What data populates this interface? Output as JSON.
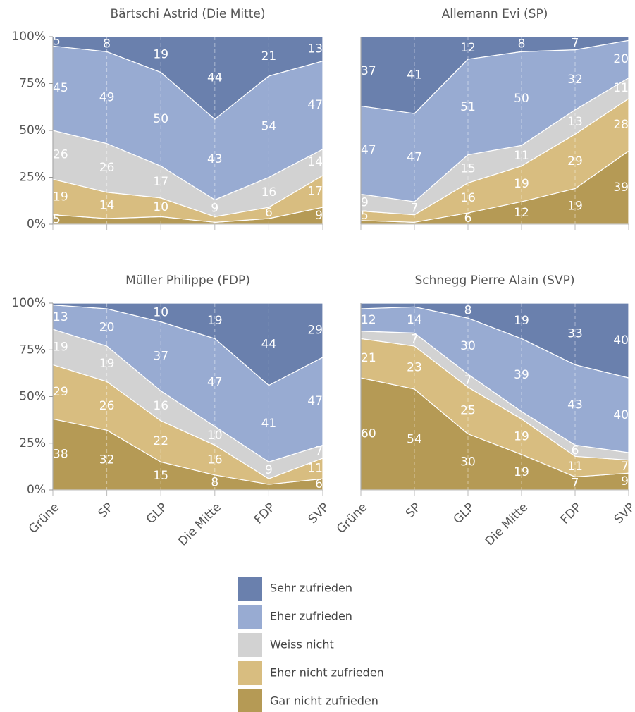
{
  "chart_data": [
    {
      "type": "area",
      "title": "Bärtschi Astrid (Die Mitte)",
      "stacked": true,
      "ylim": [
        0,
        100
      ],
      "yticks": [
        {
          "value": 0,
          "label": "0%"
        },
        {
          "value": 25,
          "label": "25%"
        },
        {
          "value": 50,
          "label": "50%"
        },
        {
          "value": 75,
          "label": "75%"
        },
        {
          "value": 100,
          "label": "100%"
        }
      ],
      "series": [
        {
          "name": "Gar nicht zufrieden",
          "color": "#b59a55",
          "values": [
            5,
            3,
            4,
            1,
            3,
            9
          ]
        },
        {
          "name": "Eher nicht zufrieden",
          "color": "#d8bd80",
          "values": [
            19,
            14,
            10,
            3,
            6,
            17
          ]
        },
        {
          "name": "Weiss nicht",
          "color": "#d2d2d2",
          "values": [
            26,
            26,
            17,
            9,
            16,
            14
          ]
        },
        {
          "name": "Eher zufrieden",
          "color": "#98abd2",
          "values": [
            45,
            49,
            50,
            43,
            54,
            47
          ]
        },
        {
          "name": "Sehr zufrieden",
          "color": "#6a80ad",
          "values": [
            5,
            8,
            19,
            44,
            21,
            13
          ]
        }
      ]
    },
    {
      "type": "area",
      "title": "Allemann Evi (SP)",
      "stacked": true,
      "ylim": [
        0,
        100
      ],
      "series": [
        {
          "values": [
            2,
            1,
            6,
            12,
            19,
            39
          ]
        },
        {
          "values": [
            5,
            4,
            16,
            19,
            29,
            28
          ]
        },
        {
          "values": [
            9,
            7,
            15,
            11,
            13,
            11
          ]
        },
        {
          "values": [
            47,
            47,
            51,
            50,
            32,
            20
          ]
        },
        {
          "values": [
            37,
            41,
            12,
            8,
            7,
            2
          ]
        }
      ]
    },
    {
      "type": "area",
      "title": "Müller Philippe (FDP)",
      "stacked": true,
      "categories": [
        "Grüne",
        "SP",
        "GLP",
        "Die Mitte",
        "FDP",
        "SVP"
      ],
      "ylim": [
        0,
        100
      ],
      "yticks": [
        {
          "value": 0,
          "label": "0%"
        },
        {
          "value": 25,
          "label": "25%"
        },
        {
          "value": 50,
          "label": "50%"
        },
        {
          "value": 75,
          "label": "75%"
        },
        {
          "value": 100,
          "label": "100%"
        }
      ],
      "series": [
        {
          "values": [
            38,
            32,
            15,
            8,
            3,
            6
          ]
        },
        {
          "values": [
            29,
            26,
            22,
            16,
            3,
            11
          ]
        },
        {
          "values": [
            19,
            19,
            16,
            10,
            9,
            7
          ]
        },
        {
          "values": [
            13,
            20,
            37,
            47,
            41,
            47
          ]
        },
        {
          "values": [
            1,
            3,
            10,
            19,
            44,
            29
          ]
        }
      ]
    },
    {
      "type": "area",
      "title": "Schnegg Pierre Alain (SVP)",
      "stacked": true,
      "categories": [
        "Grüne",
        "SP",
        "GLP",
        "Die Mitte",
        "FDP",
        "SVP"
      ],
      "ylim": [
        0,
        100
      ],
      "series": [
        {
          "values": [
            60,
            54,
            30,
            19,
            7,
            9
          ]
        },
        {
          "values": [
            21,
            23,
            25,
            19,
            11,
            7
          ]
        },
        {
          "values": [
            4,
            7,
            7,
            4,
            6,
            4
          ]
        },
        {
          "values": [
            12,
            14,
            30,
            39,
            43,
            40
          ]
        },
        {
          "values": [
            3,
            2,
            8,
            19,
            33,
            40
          ]
        }
      ]
    }
  ]
}
